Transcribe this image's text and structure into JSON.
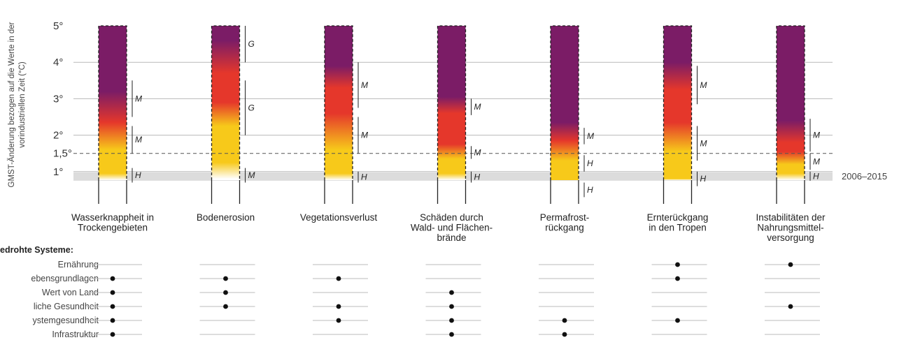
{
  "chart_data": {
    "type": "bar",
    "ylabel_lines": [
      "GMST-Änderung bezogen auf die Werte in der",
      "vorindustriellen Zeit (°C)"
    ],
    "yticks": [
      {
        "value": 1,
        "label": "1°"
      },
      {
        "value": 1.5,
        "label": "1,5°"
      },
      {
        "value": 2,
        "label": "2°"
      },
      {
        "value": 3,
        "label": "3°"
      },
      {
        "value": 4,
        "label": "4°"
      },
      {
        "value": 5,
        "label": "5°"
      }
    ],
    "ylim": [
      0,
      5
    ],
    "reference_band": {
      "label": "2006–2015",
      "from": 0.75,
      "to": 0.98,
      "color": "#dcdcdc"
    },
    "reference_line": {
      "value": 1.5,
      "style": "dashed"
    },
    "risk_colors": [
      "#ffffff",
      "#f7c91a",
      "#e5372b",
      "#7b1c66"
    ],
    "categories": [
      {
        "label_lines": [
          "Wasserknappheit in",
          "Trockengebieten"
        ],
        "stops": [
          [
            0.55,
            0
          ],
          [
            0.95,
            1
          ],
          [
            1.6,
            1
          ],
          [
            2.35,
            2
          ],
          [
            3.2,
            3
          ],
          [
            5,
            3
          ]
        ],
        "confidence": [
          {
            "label": "H",
            "from": 0.7,
            "to": 1.1
          },
          {
            "label": "M",
            "from": 1.5,
            "to": 2.25
          },
          {
            "label": "M",
            "from": 2.5,
            "to": 3.5
          }
        ]
      },
      {
        "label_lines": [
          "Bodenerosion"
        ],
        "stops": [
          [
            0.8,
            0
          ],
          [
            1.25,
            1
          ],
          [
            2.25,
            1
          ],
          [
            2.9,
            2
          ],
          [
            3.7,
            2
          ],
          [
            4.6,
            3
          ],
          [
            5,
            3
          ]
        ],
        "confidence": [
          {
            "label": "M",
            "from": 0.7,
            "to": 1.1
          },
          {
            "label": "G",
            "from": 2.0,
            "to": 3.5
          },
          {
            "label": "G",
            "from": 4.0,
            "to": 5.0
          }
        ]
      },
      {
        "label_lines": [
          "Vegetationsverlust"
        ],
        "stops": [
          [
            0.6,
            0
          ],
          [
            0.95,
            1
          ],
          [
            1.6,
            1
          ],
          [
            2.6,
            2
          ],
          [
            3.3,
            2
          ],
          [
            3.9,
            3
          ],
          [
            5,
            3
          ]
        ],
        "confidence": [
          {
            "label": "H",
            "from": 0.7,
            "to": 1.0
          },
          {
            "label": "M",
            "from": 1.5,
            "to": 2.5
          },
          {
            "label": "M",
            "from": 2.75,
            "to": 4.0
          }
        ]
      },
      {
        "label_lines": [
          "Schäden durch",
          "Wald- und Flächen-",
          "brände"
        ],
        "stops": [
          [
            0.6,
            0
          ],
          [
            0.95,
            1
          ],
          [
            1.35,
            1
          ],
          [
            1.75,
            2
          ],
          [
            2.6,
            2
          ],
          [
            3.05,
            3
          ],
          [
            5,
            3
          ]
        ],
        "confidence": [
          {
            "label": "H",
            "from": 0.7,
            "to": 1.0
          },
          {
            "label": "M",
            "from": 1.35,
            "to": 1.7
          },
          {
            "label": "M",
            "from": 2.55,
            "to": 3.0
          }
        ]
      },
      {
        "label_lines": [
          "Permafrost-",
          "rückgang"
        ],
        "stops": [
          [
            0.45,
            0
          ],
          [
            0.7,
            1
          ],
          [
            1.3,
            1
          ],
          [
            1.85,
            2
          ],
          [
            2.35,
            3
          ],
          [
            5,
            3
          ]
        ],
        "confidence": [
          {
            "label": "H",
            "from": 0.3,
            "to": 0.7
          },
          {
            "label": "H",
            "from": 1.0,
            "to": 1.45
          },
          {
            "label": "M",
            "from": 1.75,
            "to": 2.2
          }
        ]
      },
      {
        "label_lines": [
          "Ernterückgang",
          "in den Tropen"
        ],
        "stops": [
          [
            0.45,
            0
          ],
          [
            0.8,
            1
          ],
          [
            1.55,
            1
          ],
          [
            2.35,
            2
          ],
          [
            3.25,
            2
          ],
          [
            4.0,
            3
          ],
          [
            5,
            3
          ]
        ],
        "confidence": [
          {
            "label": "H",
            "from": 0.6,
            "to": 1.0
          },
          {
            "label": "M",
            "from": 1.3,
            "to": 2.25
          },
          {
            "label": "M",
            "from": 2.85,
            "to": 3.9
          }
        ]
      },
      {
        "label_lines": [
          "Instabilitäten der",
          "Nahrungsmittel-",
          "versorgung"
        ],
        "stops": [
          [
            0.7,
            0
          ],
          [
            0.95,
            1
          ],
          [
            1.2,
            1
          ],
          [
            1.55,
            2
          ],
          [
            1.8,
            2
          ],
          [
            2.4,
            3
          ],
          [
            5,
            3
          ]
        ],
        "confidence": [
          {
            "label": "H",
            "from": 0.75,
            "to": 1.0
          },
          {
            "label": "M",
            "from": 1.05,
            "to": 1.5
          },
          {
            "label": "M",
            "from": 1.55,
            "to": 2.45
          }
        ]
      }
    ],
    "systems": {
      "title": "edrohte Systeme:",
      "rows": [
        "Ernährung",
        "ebensgrundlagen",
        "Wert von Land",
        "liche Gesundheit",
        "ystemgesundheit",
        "Infrastruktur"
      ],
      "dots": [
        [
          false,
          true,
          true,
          true,
          true,
          true
        ],
        [
          false,
          true,
          true,
          true,
          false,
          false
        ],
        [
          false,
          true,
          false,
          true,
          true,
          false
        ],
        [
          false,
          false,
          true,
          true,
          true,
          true
        ],
        [
          false,
          false,
          false,
          false,
          true,
          true
        ],
        [
          true,
          true,
          false,
          false,
          true,
          false
        ],
        [
          true,
          false,
          false,
          true,
          false,
          false
        ]
      ]
    }
  }
}
